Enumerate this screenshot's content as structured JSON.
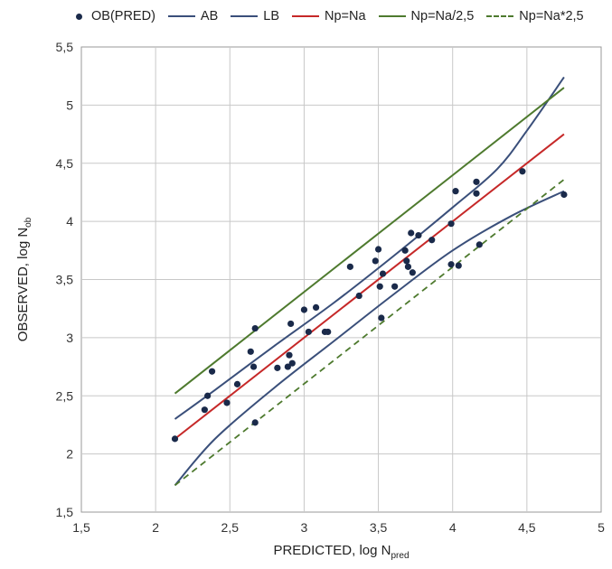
{
  "chart_data": {
    "type": "scatter",
    "xlabel": "PREDICTED, log N",
    "xlabel_sub": "pred",
    "ylabel": "OBSERVED, log N",
    "ylabel_sub": "ob",
    "xlim": [
      1.5,
      5
    ],
    "ylim": [
      1.5,
      5.5
    ],
    "x_ticks": [
      1.5,
      2,
      2.5,
      3,
      3.5,
      4,
      4.5,
      5
    ],
    "y_ticks": [
      1.5,
      2,
      2.5,
      3,
      3.5,
      4,
      4.5,
      5,
      5.5
    ],
    "x_tick_labels": [
      "1,5",
      "2",
      "2,5",
      "3",
      "3,5",
      "4",
      "4,5",
      "5"
    ],
    "y_tick_labels": [
      "1,5",
      "2",
      "2,5",
      "3",
      "3,5",
      "4",
      "4,5",
      "5",
      "5,5"
    ],
    "grid": true,
    "legend_position": "top",
    "series": [
      {
        "name": "OB(PRED)",
        "kind": "points",
        "color": "#1a2a4a",
        "points": [
          [
            2.13,
            2.13
          ],
          [
            2.33,
            2.38
          ],
          [
            2.35,
            2.5
          ],
          [
            2.38,
            2.71
          ],
          [
            2.48,
            2.44
          ],
          [
            2.55,
            2.6
          ],
          [
            2.64,
            2.88
          ],
          [
            2.66,
            2.75
          ],
          [
            2.67,
            3.08
          ],
          [
            2.67,
            2.27
          ],
          [
            2.82,
            2.74
          ],
          [
            2.89,
            2.75
          ],
          [
            2.9,
            2.85
          ],
          [
            2.91,
            3.12
          ],
          [
            2.92,
            2.78
          ],
          [
            3.0,
            3.24
          ],
          [
            3.03,
            3.05
          ],
          [
            3.08,
            3.26
          ],
          [
            3.14,
            3.05
          ],
          [
            3.16,
            3.05
          ],
          [
            3.31,
            3.61
          ],
          [
            3.37,
            3.36
          ],
          [
            3.48,
            3.66
          ],
          [
            3.5,
            3.76
          ],
          [
            3.51,
            3.44
          ],
          [
            3.52,
            3.17
          ],
          [
            3.53,
            3.55
          ],
          [
            3.61,
            3.44
          ],
          [
            3.68,
            3.75
          ],
          [
            3.69,
            3.66
          ],
          [
            3.7,
            3.61
          ],
          [
            3.72,
            3.9
          ],
          [
            3.73,
            3.56
          ],
          [
            3.77,
            3.88
          ],
          [
            3.86,
            3.84
          ],
          [
            3.99,
            3.98
          ],
          [
            3.99,
            3.63
          ],
          [
            4.02,
            4.26
          ],
          [
            4.04,
            3.62
          ],
          [
            4.16,
            4.34
          ],
          [
            4.16,
            4.24
          ],
          [
            4.18,
            3.8
          ],
          [
            4.47,
            4.43
          ],
          [
            4.75,
            4.23
          ]
        ]
      },
      {
        "name": "AB",
        "kind": "line",
        "color": "#3a4f7a",
        "points": [
          [
            2.13,
            2.3
          ],
          [
            2.4,
            2.55
          ],
          [
            2.8,
            2.93
          ],
          [
            3.2,
            3.3
          ],
          [
            3.6,
            3.7
          ],
          [
            4.0,
            4.12
          ],
          [
            4.3,
            4.45
          ],
          [
            4.5,
            4.78
          ],
          [
            4.75,
            5.24
          ]
        ]
      },
      {
        "name": "LB",
        "kind": "line",
        "color": "#3a4f7a",
        "points": [
          [
            2.13,
            1.73
          ],
          [
            2.4,
            2.13
          ],
          [
            2.8,
            2.57
          ],
          [
            3.2,
            2.97
          ],
          [
            3.6,
            3.37
          ],
          [
            4.0,
            3.75
          ],
          [
            4.4,
            4.05
          ],
          [
            4.75,
            4.26
          ]
        ]
      },
      {
        "name": "Np=Na",
        "kind": "line",
        "color": "#c62828",
        "points": [
          [
            2.13,
            2.13
          ],
          [
            4.75,
            4.75
          ]
        ]
      },
      {
        "name": "Np=Na/2,5",
        "kind": "line",
        "color": "#4e7a2e",
        "points": [
          [
            2.13,
            2.52
          ],
          [
            4.75,
            5.15
          ]
        ]
      },
      {
        "name": "Np=Na*2,5",
        "kind": "dashed",
        "color": "#4e7a2e",
        "points": [
          [
            2.13,
            1.73
          ],
          [
            4.75,
            4.36
          ]
        ]
      }
    ]
  }
}
